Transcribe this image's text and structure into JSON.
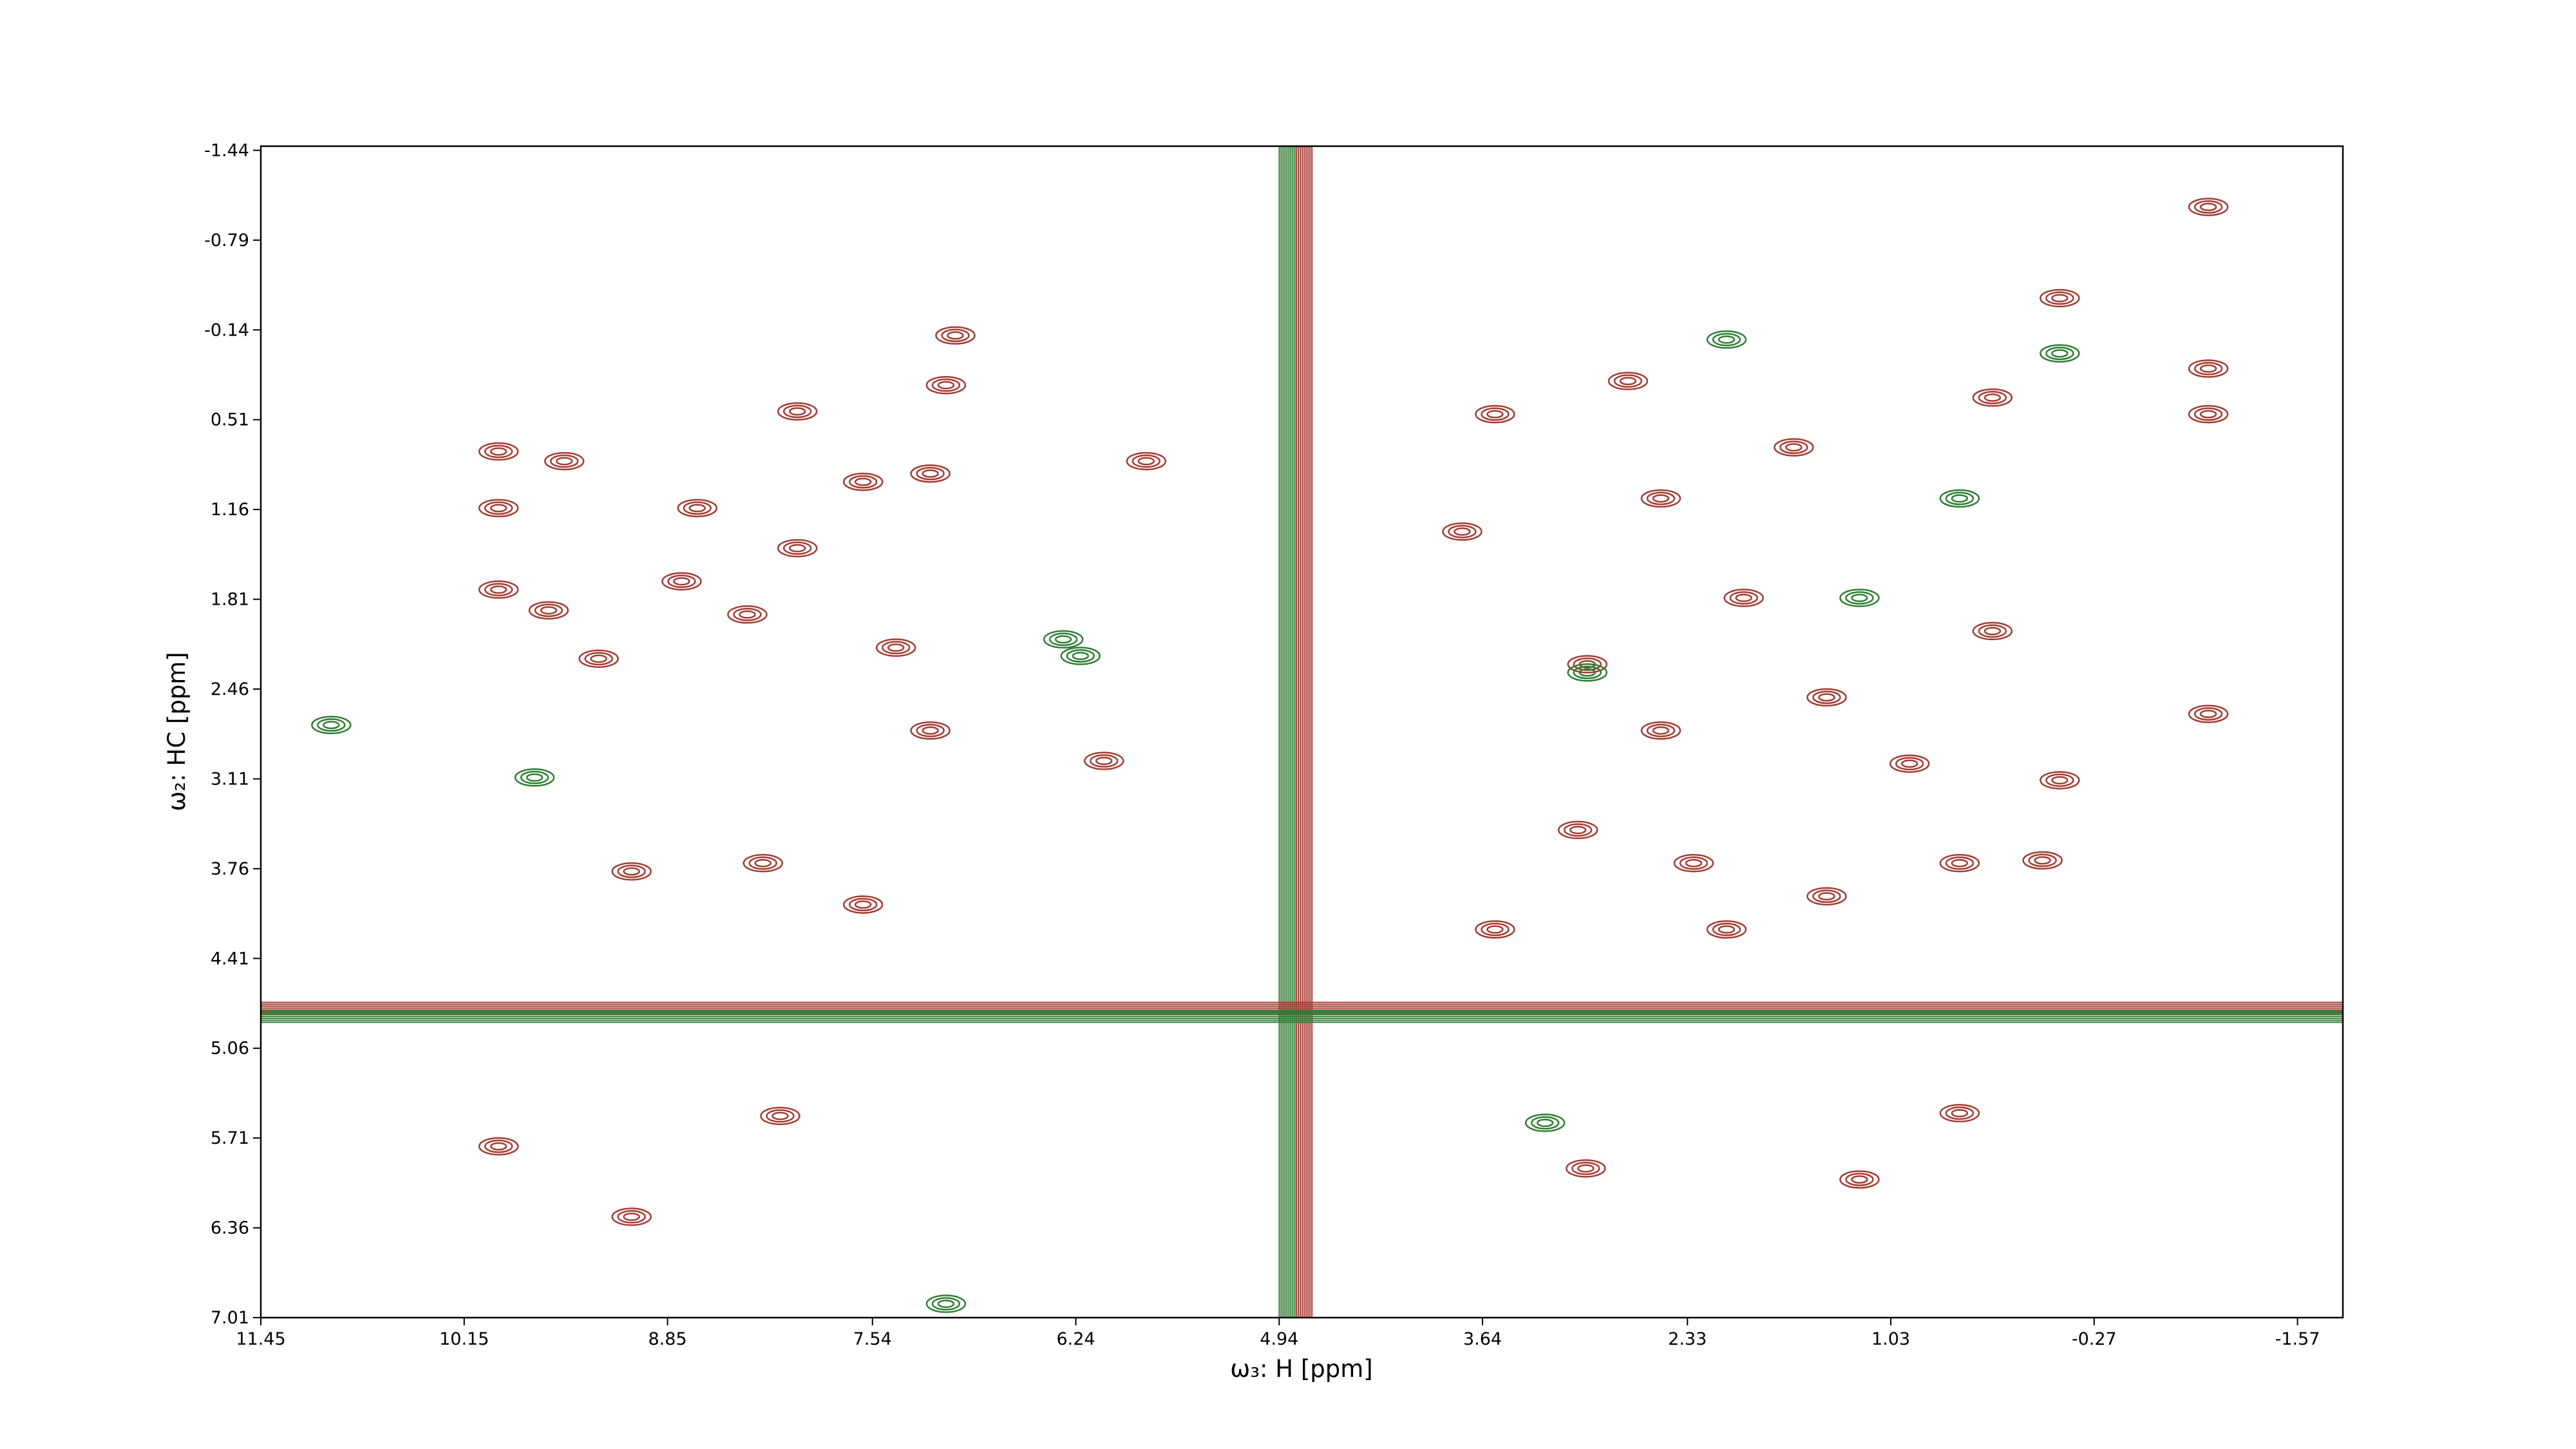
{
  "chart_data": {
    "type": "contour",
    "xlabel": "ω₃: H [ppm]",
    "ylabel": "ω₂: HC [ppm]",
    "xlim": [
      11.45,
      -1.86
    ],
    "ylim": [
      -1.47,
      7.01
    ],
    "xticks": [
      11.45,
      10.15,
      8.85,
      7.54,
      6.24,
      4.94,
      3.64,
      2.33,
      1.03,
      -0.27,
      -1.57
    ],
    "yticks": [
      -1.44,
      -0.79,
      -0.14,
      0.51,
      1.16,
      1.81,
      2.46,
      3.11,
      3.76,
      4.41,
      5.06,
      5.71,
      6.36,
      7.01
    ],
    "series": [
      {
        "color": "#a33b32",
        "x": [
          7.01,
          9.93,
          9.51,
          9.93,
          8.66,
          9.93,
          9.61,
          9.29,
          8.76,
          8.34,
          8.02,
          7.6,
          7.17,
          7.07,
          8.02,
          7.39,
          7.17,
          9.08,
          8.24,
          7.6,
          9.93,
          9.08,
          8.13,
          5.79,
          6.06,
          -0.05,
          -1.0,
          -1.0,
          -0.05,
          -1.0,
          -1.0,
          3.56,
          3.77,
          2.5,
          1.97,
          1.44,
          0.91,
          0.38,
          2.5,
          3.03,
          2.29,
          1.44,
          0.59,
          0.06,
          2.08,
          3.56,
          2.98,
          1.23,
          0.59,
          2.97,
          1.65,
          2.71,
          0.38
        ],
        "y": [
          -0.1,
          0.74,
          0.81,
          1.15,
          1.15,
          1.74,
          1.89,
          2.24,
          1.68,
          1.92,
          1.44,
          0.96,
          0.9,
          0.26,
          0.45,
          2.16,
          2.76,
          3.78,
          3.72,
          4.02,
          5.77,
          6.28,
          5.55,
          0.81,
          2.98,
          3.12,
          2.64,
          -1.03,
          -0.37,
          0.14,
          0.47,
          0.47,
          1.32,
          1.08,
          1.8,
          2.52,
          3.0,
          2.04,
          2.76,
          3.48,
          3.72,
          3.96,
          3.72,
          3.7,
          4.2,
          4.2,
          5.93,
          6.01,
          5.53,
          2.28,
          0.71,
          0.23,
          0.35
        ]
      },
      {
        "color": "#2e7d32",
        "x": [
          6.32,
          11.0,
          9.7,
          2.08,
          -0.05,
          2.97,
          1.23,
          7.07,
          3.24,
          0.59,
          6.21
        ],
        "y": [
          2.1,
          2.72,
          3.1,
          -0.07,
          0.03,
          2.34,
          1.8,
          6.91,
          5.6,
          1.08,
          2.22
        ]
      }
    ],
    "ridges": [
      {
        "color": "#2e7d32",
        "x": 4.89
      },
      {
        "color": "#a33b32",
        "x": 4.78
      },
      {
        "color": "#a33b32",
        "y": 4.77
      },
      {
        "color": "#2e7d32",
        "y": 4.83
      }
    ]
  }
}
